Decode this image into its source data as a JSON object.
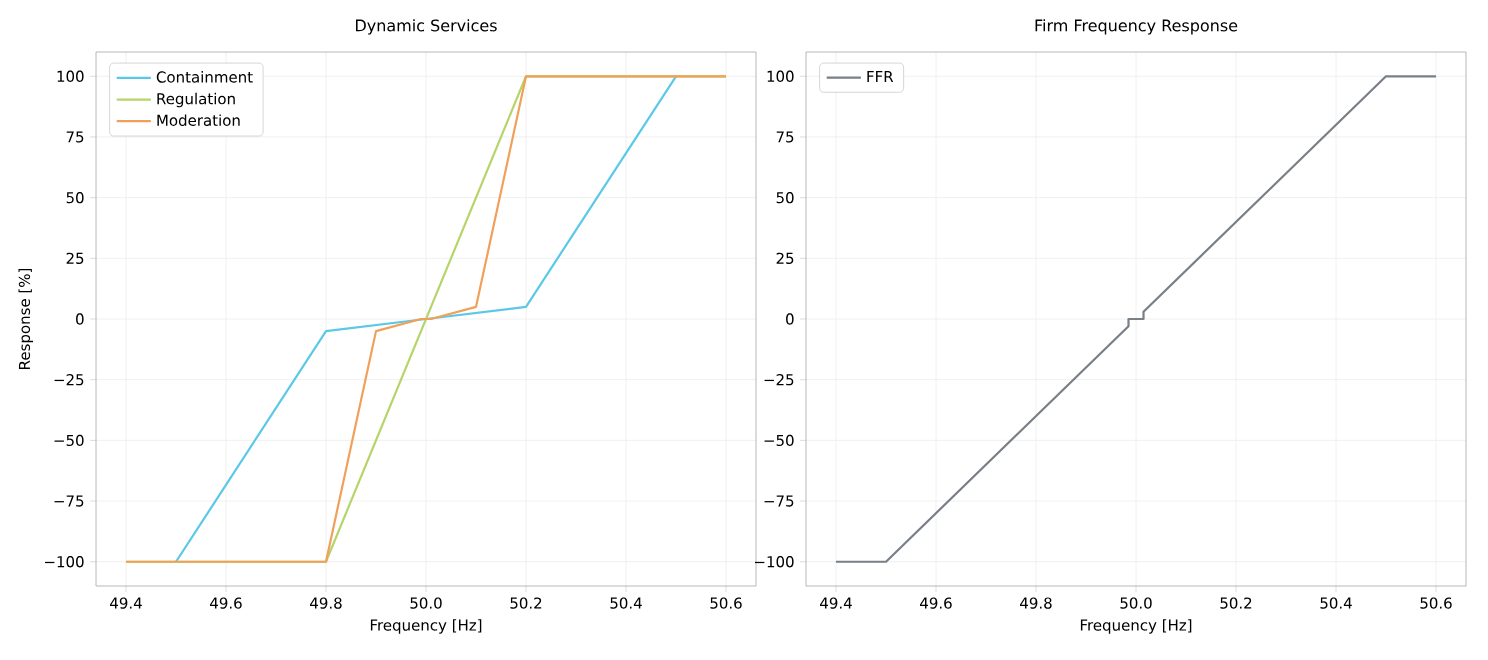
{
  "chart_data": [
    {
      "type": "line",
      "title": "Dynamic Services",
      "xlabel": "Frequency [Hz]",
      "ylabel": "Response [%]",
      "grid": true,
      "legend": "top left",
      "xlim": [
        49.34,
        50.66
      ],
      "ylim": [
        -110,
        110
      ],
      "xticks": [
        49.4,
        49.6,
        49.8,
        {
          "value": 50,
          "label": "50.0"
        },
        50.2,
        50.4,
        50.6
      ],
      "yticks": [
        {
          "value": -100,
          "label": "−100"
        },
        {
          "value": -75,
          "label": "−75"
        },
        {
          "value": -50,
          "label": "−50"
        },
        {
          "value": -25,
          "label": "−25"
        },
        0,
        25,
        50,
        75,
        100
      ],
      "series": [
        {
          "name": "Containment",
          "color": "#5bc8e8",
          "x": [
            49.5,
            49.8,
            50.0,
            50.2,
            50.5
          ],
          "values": [
            -100,
            -5,
            0,
            5,
            100
          ]
        },
        {
          "name": "Regulation",
          "color": "#b5d56a",
          "x": [
            49.4,
            49.8,
            50.2,
            50.6
          ],
          "values": [
            -100,
            -100,
            100,
            100
          ]
        },
        {
          "name": "Moderation",
          "color": "#f0a058",
          "x": [
            49.4,
            49.8,
            49.9,
            49.99,
            50.01,
            50.1,
            50.2,
            50.6
          ],
          "values": [
            -100,
            -100,
            -5,
            0,
            0,
            5,
            100,
            100
          ]
        }
      ]
    },
    {
      "type": "line",
      "title": "Firm Frequency Response",
      "xlabel": "Frequency [Hz]",
      "grid": true,
      "legend": "top left",
      "xlim": [
        49.34,
        50.66
      ],
      "ylim": [
        -110,
        110
      ],
      "xticks": [
        49.4,
        49.6,
        49.8,
        {
          "value": 50,
          "label": "50.0"
        },
        50.2,
        50.4,
        50.6
      ],
      "yticks": [
        {
          "value": -100,
          "label": "−100"
        },
        {
          "value": -75,
          "label": "−75"
        },
        {
          "value": -50,
          "label": "−50"
        },
        {
          "value": -25,
          "label": "−25"
        },
        0,
        25,
        50,
        75,
        100
      ],
      "series": [
        {
          "name": "FFR",
          "color": "#787f87",
          "x": [
            49.4,
            49.5,
            49.985,
            49.985,
            50.015,
            50.015,
            50.5,
            50.6
          ],
          "values": [
            -100,
            -100,
            -3,
            0,
            0,
            3,
            100,
            100
          ]
        }
      ]
    }
  ]
}
